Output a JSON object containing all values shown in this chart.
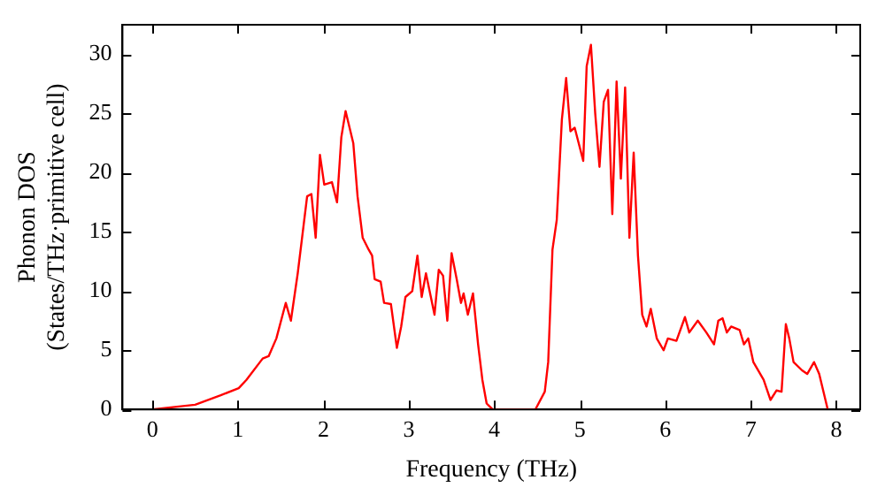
{
  "chart_data": {
    "type": "line",
    "xlabel": "Frequency (THz)",
    "ylabel": "Phonon DOS\n(States/THz·primitive cell)",
    "xlim": [
      -0.35,
      8.28
    ],
    "ylim": [
      0,
      32.5
    ],
    "xticks": [
      0,
      1,
      2,
      3,
      4,
      5,
      6,
      7,
      8
    ],
    "yticks": [
      0,
      5,
      10,
      15,
      20,
      25,
      30
    ],
    "grid": false,
    "legend": false,
    "marker": "none",
    "line_style": "solid",
    "series": [
      {
        "color": "#ff0000",
        "x": [
          0,
          0.5,
          0.8,
          1.01,
          1.1,
          1.29,
          1.36,
          1.45,
          1.56,
          1.62,
          1.7,
          1.81,
          1.86,
          1.91,
          1.96,
          2.01,
          2.1,
          2.16,
          2.21,
          2.26,
          2.35,
          2.4,
          2.46,
          2.53,
          2.57,
          2.6,
          2.67,
          2.71,
          2.79,
          2.86,
          2.91,
          2.96,
          3.04,
          3.1,
          3.15,
          3.2,
          3.3,
          3.35,
          3.4,
          3.45,
          3.5,
          3.56,
          3.61,
          3.64,
          3.69,
          3.75,
          3.81,
          3.86,
          3.91,
          3.98,
          4.48,
          4.59,
          4.63,
          4.68,
          4.73,
          4.79,
          4.84,
          4.89,
          4.94,
          5.04,
          5.08,
          5.13,
          5.18,
          5.23,
          5.28,
          5.33,
          5.38,
          5.43,
          5.48,
          5.53,
          5.58,
          5.63,
          5.68,
          5.73,
          5.78,
          5.83,
          5.9,
          5.98,
          6.03,
          6.13,
          6.23,
          6.28,
          6.38,
          6.48,
          6.57,
          6.62,
          6.67,
          6.72,
          6.77,
          6.87,
          6.92,
          6.97,
          7.03,
          7.15,
          7.23,
          7.3,
          7.36,
          7.41,
          7.45,
          7.5,
          7.6,
          7.66,
          7.74,
          7.8,
          7.9
        ],
        "values": [
          0,
          0.4,
          1.2,
          1.8,
          2.5,
          4.3,
          4.5,
          6,
          9,
          7.5,
          11.5,
          18,
          18.2,
          14.5,
          21.5,
          19,
          19.2,
          17.5,
          23,
          25.2,
          22.5,
          18,
          14.5,
          13.5,
          13,
          11,
          10.8,
          9,
          8.9,
          5.2,
          7,
          9.5,
          10,
          13,
          9.5,
          11.5,
          8,
          11.8,
          11.3,
          7.5,
          13.2,
          11,
          9,
          9.8,
          8,
          9.8,
          5.5,
          2.5,
          0.5,
          0,
          0,
          1.5,
          4,
          13.5,
          16,
          24.5,
          28,
          23.5,
          23.8,
          21,
          29,
          30.8,
          25,
          20.5,
          26,
          27,
          16.5,
          27.7,
          19.5,
          27.2,
          14.5,
          21.7,
          13,
          8,
          7,
          8.5,
          6,
          5,
          6,
          5.8,
          7.8,
          6.5,
          7.5,
          6.5,
          5.5,
          7.5,
          7.7,
          6.5,
          7,
          6.7,
          5.5,
          6,
          4,
          2.5,
          0.8,
          1.6,
          1.5,
          7.2,
          6,
          4,
          3.3,
          3,
          4,
          3,
          0
        ]
      }
    ]
  }
}
